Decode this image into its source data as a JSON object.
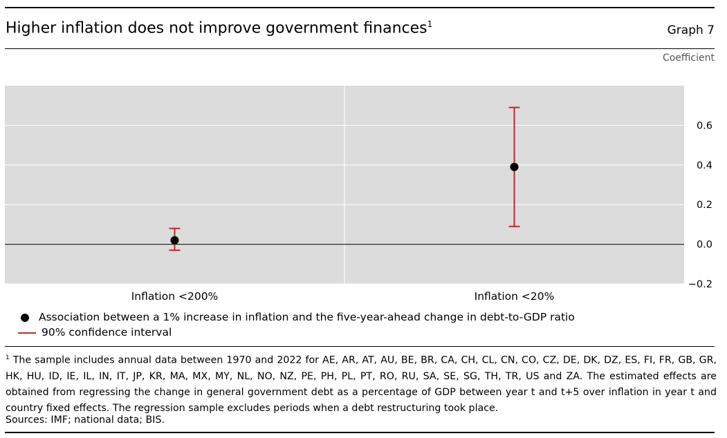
{
  "header": {
    "title": "Higher inflation does not improve government finances",
    "title_note": "1",
    "graph_label": "Graph 7",
    "unit_label": "Coefficient"
  },
  "colors": {
    "panel": "#dcdcdc",
    "error_bar": "#c0282d",
    "point": "#000000"
  },
  "chart_data": {
    "type": "scatter",
    "categories": [
      "Inflation <200%",
      "Inflation <20%"
    ],
    "series": [
      {
        "name": "Association between a 1% increase in inflation and the five-year-ahead change in debt-to-GDP ratio",
        "values": [
          0.02,
          0.39
        ]
      },
      {
        "name": "90% confidence interval",
        "lower": [
          -0.03,
          0.09
        ],
        "upper": [
          0.08,
          0.69
        ]
      }
    ],
    "ylabel": "Coefficient",
    "ylim": [
      -0.2,
      0.8
    ],
    "yticks": [
      0.6,
      0.4,
      0.2,
      0.0,
      -0.2
    ],
    "ytick_labels": [
      "0.6",
      "0.4",
      "0.2",
      "0.0",
      "−0.2"
    ],
    "grid": true,
    "legend": "bottom-left"
  },
  "footnote": {
    "marker": "1",
    "text": "The sample includes annual data between 1970 and 2022 for AE, AR, AT, AU, BE, BR, CA, CH, CL, CN, CO, CZ, DE, DK, DZ, ES, FI, FR, GB, GR, HK, HU, ID, IE, IL, IN, IT, JP, KR, MA, MX, MY, NL, NO, NZ, PE, PH, PL, PT, RO, RU, SA, SE, SG, TH, TR, US and ZA. The estimated effects are obtained from regressing the change in general government debt as a percentage of GDP between year t and t+5 over inflation in year t and country fixed effects. The regression sample excludes periods when a debt restructuring took place."
  },
  "sources": "Sources: IMF; national data; BIS."
}
